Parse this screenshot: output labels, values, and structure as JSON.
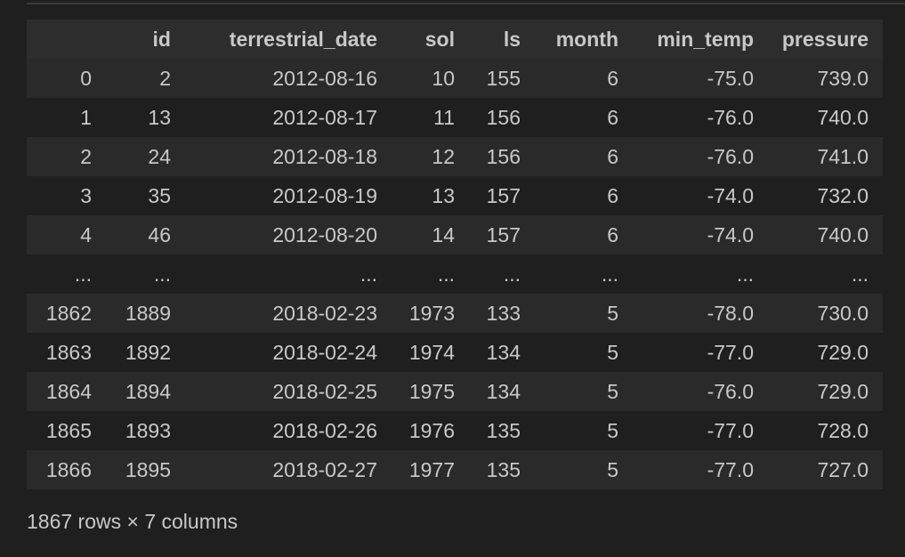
{
  "table": {
    "columns": [
      "",
      "id",
      "terrestrial_date",
      "sol",
      "ls",
      "month",
      "min_temp",
      "pressure"
    ],
    "rows": [
      [
        "0",
        "2",
        "2012-08-16",
        "10",
        "155",
        "6",
        "-75.0",
        "739.0"
      ],
      [
        "1",
        "13",
        "2012-08-17",
        "11",
        "156",
        "6",
        "-76.0",
        "740.0"
      ],
      [
        "2",
        "24",
        "2012-08-18",
        "12",
        "156",
        "6",
        "-76.0",
        "741.0"
      ],
      [
        "3",
        "35",
        "2012-08-19",
        "13",
        "157",
        "6",
        "-74.0",
        "732.0"
      ],
      [
        "4",
        "46",
        "2012-08-20",
        "14",
        "157",
        "6",
        "-74.0",
        "740.0"
      ],
      [
        "...",
        "...",
        "...",
        "...",
        "...",
        "...",
        "...",
        "..."
      ],
      [
        "1862",
        "1889",
        "2018-02-23",
        "1973",
        "133",
        "5",
        "-78.0",
        "730.0"
      ],
      [
        "1863",
        "1892",
        "2018-02-24",
        "1974",
        "134",
        "5",
        "-77.0",
        "729.0"
      ],
      [
        "1864",
        "1894",
        "2018-02-25",
        "1975",
        "134",
        "5",
        "-76.0",
        "729.0"
      ],
      [
        "1865",
        "1893",
        "2018-02-26",
        "1976",
        "135",
        "5",
        "-77.0",
        "728.0"
      ],
      [
        "1866",
        "1895",
        "2018-02-27",
        "1977",
        "135",
        "5",
        "-77.0",
        "727.0"
      ]
    ]
  },
  "summary": "1867 rows × 7 columns"
}
